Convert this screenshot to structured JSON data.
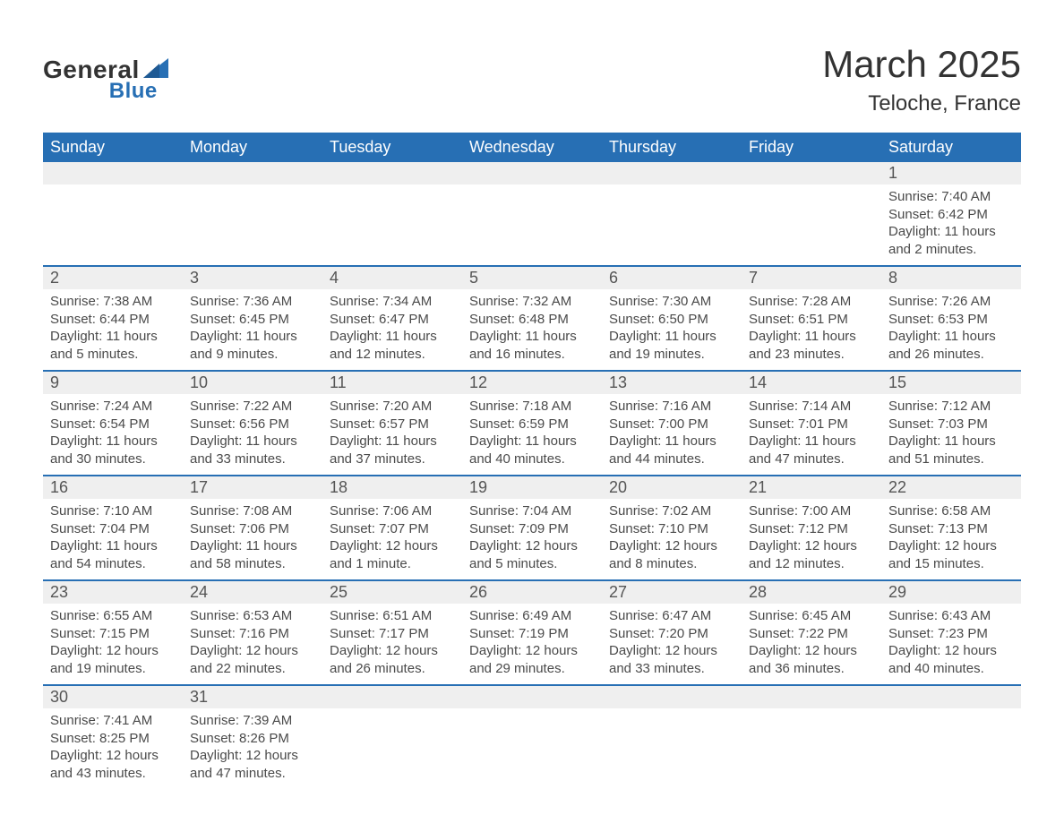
{
  "brand": {
    "word1": "General",
    "word2": "Blue",
    "accent": "#276fb4"
  },
  "title": "March 2025",
  "location": "Teloche, France",
  "day_headers": [
    "Sunday",
    "Monday",
    "Tuesday",
    "Wednesday",
    "Thursday",
    "Friday",
    "Saturday"
  ],
  "colors": {
    "header_bg": "#276fb4",
    "header_text": "#ffffff",
    "daynum_bg": "#efefef",
    "text": "#404040",
    "border": "#276fb4"
  },
  "typography": {
    "title_fontsize": 42,
    "location_fontsize": 24,
    "header_fontsize": 18,
    "body_fontsize": 15
  },
  "weeks": [
    [
      {
        "n": "",
        "sunrise": "",
        "sunset": "",
        "daylight": ""
      },
      {
        "n": "",
        "sunrise": "",
        "sunset": "",
        "daylight": ""
      },
      {
        "n": "",
        "sunrise": "",
        "sunset": "",
        "daylight": ""
      },
      {
        "n": "",
        "sunrise": "",
        "sunset": "",
        "daylight": ""
      },
      {
        "n": "",
        "sunrise": "",
        "sunset": "",
        "daylight": ""
      },
      {
        "n": "",
        "sunrise": "",
        "sunset": "",
        "daylight": ""
      },
      {
        "n": "1",
        "sunrise": "Sunrise: 7:40 AM",
        "sunset": "Sunset: 6:42 PM",
        "daylight": "Daylight: 11 hours and 2 minutes."
      }
    ],
    [
      {
        "n": "2",
        "sunrise": "Sunrise: 7:38 AM",
        "sunset": "Sunset: 6:44 PM",
        "daylight": "Daylight: 11 hours and 5 minutes."
      },
      {
        "n": "3",
        "sunrise": "Sunrise: 7:36 AM",
        "sunset": "Sunset: 6:45 PM",
        "daylight": "Daylight: 11 hours and 9 minutes."
      },
      {
        "n": "4",
        "sunrise": "Sunrise: 7:34 AM",
        "sunset": "Sunset: 6:47 PM",
        "daylight": "Daylight: 11 hours and 12 minutes."
      },
      {
        "n": "5",
        "sunrise": "Sunrise: 7:32 AM",
        "sunset": "Sunset: 6:48 PM",
        "daylight": "Daylight: 11 hours and 16 minutes."
      },
      {
        "n": "6",
        "sunrise": "Sunrise: 7:30 AM",
        "sunset": "Sunset: 6:50 PM",
        "daylight": "Daylight: 11 hours and 19 minutes."
      },
      {
        "n": "7",
        "sunrise": "Sunrise: 7:28 AM",
        "sunset": "Sunset: 6:51 PM",
        "daylight": "Daylight: 11 hours and 23 minutes."
      },
      {
        "n": "8",
        "sunrise": "Sunrise: 7:26 AM",
        "sunset": "Sunset: 6:53 PM",
        "daylight": "Daylight: 11 hours and 26 minutes."
      }
    ],
    [
      {
        "n": "9",
        "sunrise": "Sunrise: 7:24 AM",
        "sunset": "Sunset: 6:54 PM",
        "daylight": "Daylight: 11 hours and 30 minutes."
      },
      {
        "n": "10",
        "sunrise": "Sunrise: 7:22 AM",
        "sunset": "Sunset: 6:56 PM",
        "daylight": "Daylight: 11 hours and 33 minutes."
      },
      {
        "n": "11",
        "sunrise": "Sunrise: 7:20 AM",
        "sunset": "Sunset: 6:57 PM",
        "daylight": "Daylight: 11 hours and 37 minutes."
      },
      {
        "n": "12",
        "sunrise": "Sunrise: 7:18 AM",
        "sunset": "Sunset: 6:59 PM",
        "daylight": "Daylight: 11 hours and 40 minutes."
      },
      {
        "n": "13",
        "sunrise": "Sunrise: 7:16 AM",
        "sunset": "Sunset: 7:00 PM",
        "daylight": "Daylight: 11 hours and 44 minutes."
      },
      {
        "n": "14",
        "sunrise": "Sunrise: 7:14 AM",
        "sunset": "Sunset: 7:01 PM",
        "daylight": "Daylight: 11 hours and 47 minutes."
      },
      {
        "n": "15",
        "sunrise": "Sunrise: 7:12 AM",
        "sunset": "Sunset: 7:03 PM",
        "daylight": "Daylight: 11 hours and 51 minutes."
      }
    ],
    [
      {
        "n": "16",
        "sunrise": "Sunrise: 7:10 AM",
        "sunset": "Sunset: 7:04 PM",
        "daylight": "Daylight: 11 hours and 54 minutes."
      },
      {
        "n": "17",
        "sunrise": "Sunrise: 7:08 AM",
        "sunset": "Sunset: 7:06 PM",
        "daylight": "Daylight: 11 hours and 58 minutes."
      },
      {
        "n": "18",
        "sunrise": "Sunrise: 7:06 AM",
        "sunset": "Sunset: 7:07 PM",
        "daylight": "Daylight: 12 hours and 1 minute."
      },
      {
        "n": "19",
        "sunrise": "Sunrise: 7:04 AM",
        "sunset": "Sunset: 7:09 PM",
        "daylight": "Daylight: 12 hours and 5 minutes."
      },
      {
        "n": "20",
        "sunrise": "Sunrise: 7:02 AM",
        "sunset": "Sunset: 7:10 PM",
        "daylight": "Daylight: 12 hours and 8 minutes."
      },
      {
        "n": "21",
        "sunrise": "Sunrise: 7:00 AM",
        "sunset": "Sunset: 7:12 PM",
        "daylight": "Daylight: 12 hours and 12 minutes."
      },
      {
        "n": "22",
        "sunrise": "Sunrise: 6:58 AM",
        "sunset": "Sunset: 7:13 PM",
        "daylight": "Daylight: 12 hours and 15 minutes."
      }
    ],
    [
      {
        "n": "23",
        "sunrise": "Sunrise: 6:55 AM",
        "sunset": "Sunset: 7:15 PM",
        "daylight": "Daylight: 12 hours and 19 minutes."
      },
      {
        "n": "24",
        "sunrise": "Sunrise: 6:53 AM",
        "sunset": "Sunset: 7:16 PM",
        "daylight": "Daylight: 12 hours and 22 minutes."
      },
      {
        "n": "25",
        "sunrise": "Sunrise: 6:51 AM",
        "sunset": "Sunset: 7:17 PM",
        "daylight": "Daylight: 12 hours and 26 minutes."
      },
      {
        "n": "26",
        "sunrise": "Sunrise: 6:49 AM",
        "sunset": "Sunset: 7:19 PM",
        "daylight": "Daylight: 12 hours and 29 minutes."
      },
      {
        "n": "27",
        "sunrise": "Sunrise: 6:47 AM",
        "sunset": "Sunset: 7:20 PM",
        "daylight": "Daylight: 12 hours and 33 minutes."
      },
      {
        "n": "28",
        "sunrise": "Sunrise: 6:45 AM",
        "sunset": "Sunset: 7:22 PM",
        "daylight": "Daylight: 12 hours and 36 minutes."
      },
      {
        "n": "29",
        "sunrise": "Sunrise: 6:43 AM",
        "sunset": "Sunset: 7:23 PM",
        "daylight": "Daylight: 12 hours and 40 minutes."
      }
    ],
    [
      {
        "n": "30",
        "sunrise": "Sunrise: 7:41 AM",
        "sunset": "Sunset: 8:25 PM",
        "daylight": "Daylight: 12 hours and 43 minutes."
      },
      {
        "n": "31",
        "sunrise": "Sunrise: 7:39 AM",
        "sunset": "Sunset: 8:26 PM",
        "daylight": "Daylight: 12 hours and 47 minutes."
      },
      {
        "n": "",
        "sunrise": "",
        "sunset": "",
        "daylight": ""
      },
      {
        "n": "",
        "sunrise": "",
        "sunset": "",
        "daylight": ""
      },
      {
        "n": "",
        "sunrise": "",
        "sunset": "",
        "daylight": ""
      },
      {
        "n": "",
        "sunrise": "",
        "sunset": "",
        "daylight": ""
      },
      {
        "n": "",
        "sunrise": "",
        "sunset": "",
        "daylight": ""
      }
    ]
  ]
}
